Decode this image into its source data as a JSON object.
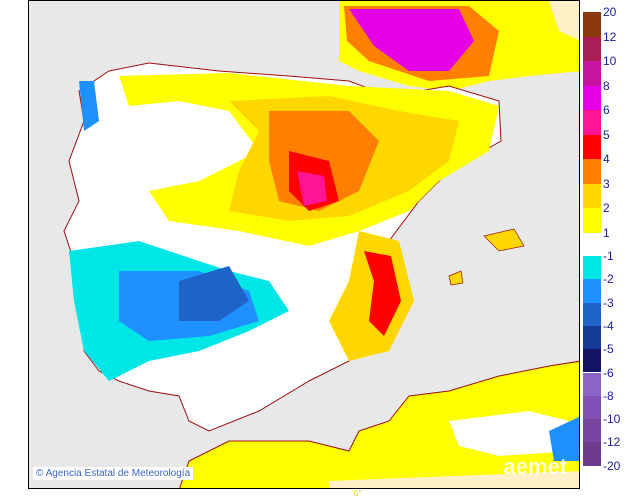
{
  "map": {
    "credit": "Agencia Estatal de Meteorología",
    "copyright_symbol": "©",
    "brand_watermark": "aemet",
    "longitude_label": "0°",
    "colors": {
      "sea_land_outside": "#e8e8e8",
      "neutral": "#ffffff",
      "border": "#a01010"
    }
  },
  "legend": {
    "positive": [
      {
        "from": "12",
        "to": "20",
        "color": "#8b3a10"
      },
      {
        "from": "10",
        "to": "12",
        "color": "#a81e55"
      },
      {
        "from": "8",
        "to": "10",
        "color": "#c812a0"
      },
      {
        "from": "6",
        "to": "8",
        "color": "#e600e6"
      },
      {
        "from": "5",
        "to": "6",
        "color": "#ff1493"
      },
      {
        "from": "4",
        "to": "5",
        "color": "#ff0000"
      },
      {
        "from": "3",
        "to": "4",
        "color": "#ff8000"
      },
      {
        "from": "2",
        "to": "3",
        "color": "#ffd700"
      },
      {
        "from": "1",
        "to": "2",
        "color": "#ffff00"
      }
    ],
    "positive_labels": [
      "20",
      "12",
      "10",
      "8",
      "6",
      "5",
      "4",
      "3",
      "2",
      "1"
    ],
    "negative": [
      {
        "color": "#00e6e6"
      },
      {
        "color": "#1e90ff"
      },
      {
        "color": "#1e64c8"
      },
      {
        "color": "#143c96"
      },
      {
        "color": "#141464"
      },
      {
        "color": "#8c64c8"
      },
      {
        "color": "#8250b4"
      },
      {
        "color": "#7846a0"
      },
      {
        "color": "#6e3c8c"
      }
    ],
    "negative_labels": [
      "-1",
      "-2",
      "-3",
      "-4",
      "-5",
      "-6",
      "-8",
      "-10",
      "-12",
      "-20"
    ]
  }
}
